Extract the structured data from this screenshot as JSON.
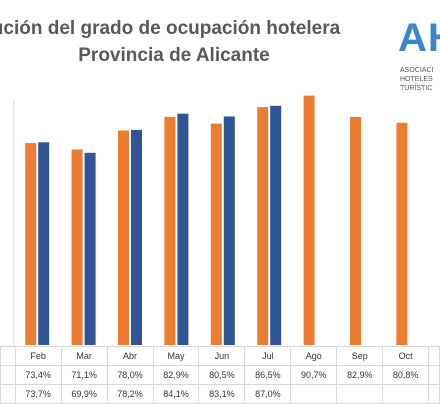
{
  "title_line1": "ución del grado de ocupación hotelera",
  "title_line2": "Provincia de Alicante",
  "logo": {
    "text": "AH",
    "lines": [
      "ASOCIACI",
      "HOTELES",
      "TURÍSTIC"
    ]
  },
  "colors": {
    "series1": "#ed7d31",
    "series2": "#2f5597"
  },
  "chart_data": {
    "type": "bar",
    "categories": [
      "Feb",
      "Mar",
      "Abr",
      "May",
      "Jun",
      "Jul",
      "Ago",
      "Sep",
      "Oct"
    ],
    "series": [
      {
        "values": [
          73.4,
          71.1,
          78.0,
          82.9,
          80.5,
          86.5,
          90.7,
          82.9,
          80.8
        ]
      },
      {
        "values": [
          73.7,
          69.9,
          78.2,
          84.1,
          83.1,
          87.0,
          null,
          null,
          null
        ]
      }
    ],
    "table_rows": [
      [
        "73,4%",
        "71,1%",
        "78,0%",
        "82,9%",
        "80,5%",
        "86,5%",
        "90,7%",
        "82,9%",
        "80,8%"
      ],
      [
        "73,7%",
        "69,9%",
        "78,2%",
        "84,1%",
        "83,1%",
        "87,0%",
        "",
        "",
        ""
      ]
    ]
  }
}
